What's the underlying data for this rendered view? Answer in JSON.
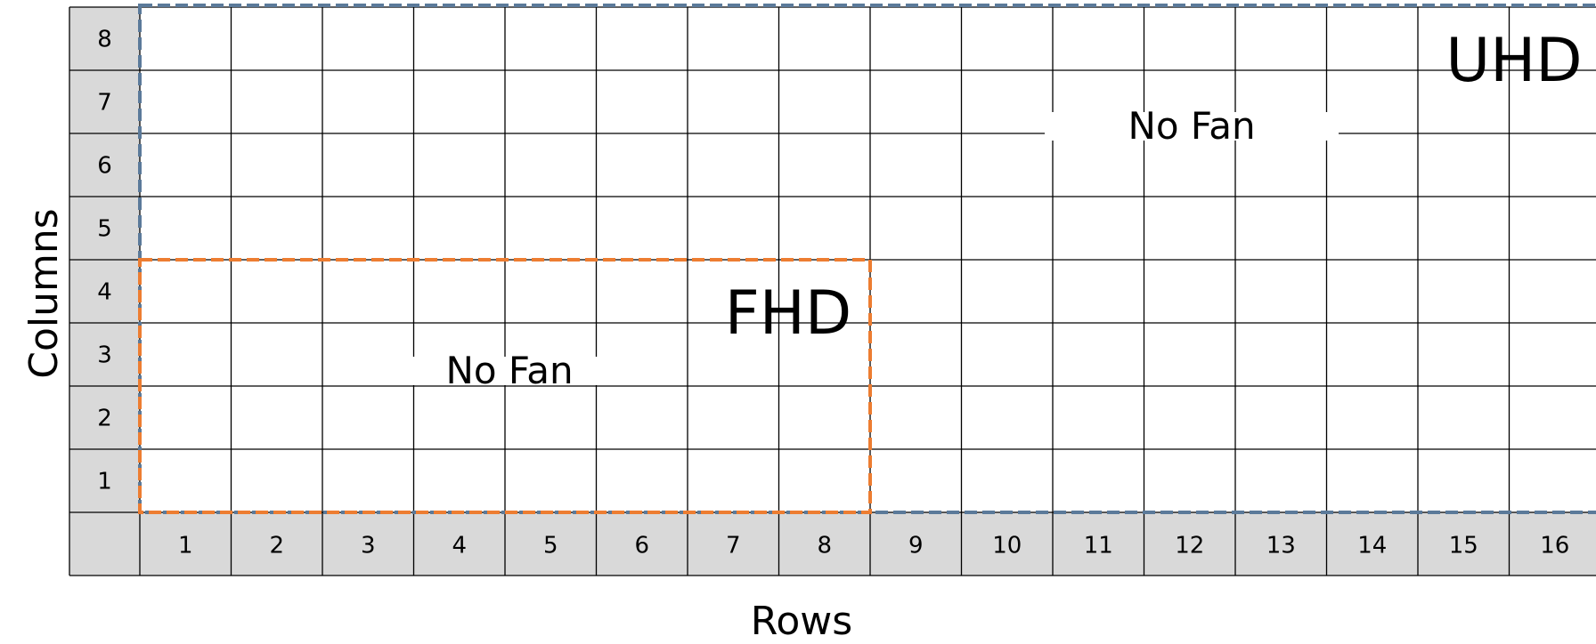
{
  "axes": {
    "x_title": "Rows",
    "y_title": "Columns",
    "row_numbers": [
      "1",
      "2",
      "3",
      "4",
      "5",
      "6",
      "7",
      "8",
      "9",
      "10",
      "11",
      "12",
      "13",
      "14",
      "15",
      "16"
    ],
    "column_numbers": [
      "1",
      "2",
      "3",
      "4",
      "5",
      "6",
      "7",
      "8"
    ]
  },
  "regions": [
    {
      "id": "fhd",
      "label": "FHD",
      "fan_label": "No Fan",
      "rows": 8,
      "columns": 4,
      "color": "#ed7d31"
    },
    {
      "id": "uhd",
      "label": "UHD",
      "fan_label": "No Fan",
      "rows": 16,
      "columns": 8,
      "color": "#5b7a9a"
    }
  ],
  "colors": {
    "header_fill": "#d9d9d9",
    "grid_line": "#000000"
  }
}
